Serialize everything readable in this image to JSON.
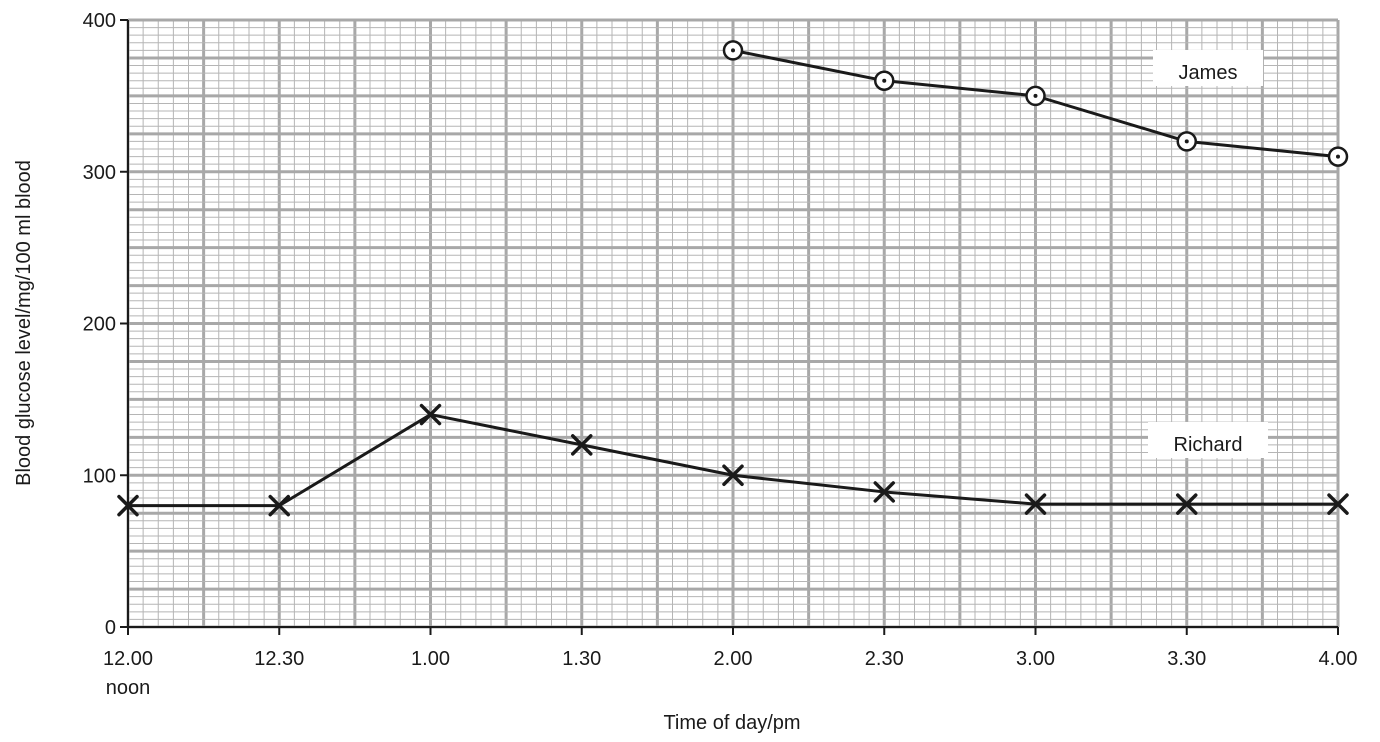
{
  "chart_data": {
    "type": "line",
    "xlabel": "Time of day/pm",
    "ylabel": "Blood glucose level/mg/100 ml blood",
    "ylim": [
      0,
      400
    ],
    "y_ticks": [
      "0",
      "100",
      "200",
      "300",
      "400"
    ],
    "x_ticks": [
      {
        "main": "12.00",
        "sub": "noon"
      },
      {
        "main": "12.30",
        "sub": ""
      },
      {
        "main": "1.00",
        "sub": ""
      },
      {
        "main": "1.30",
        "sub": ""
      },
      {
        "main": "2.00",
        "sub": ""
      },
      {
        "main": "2.30",
        "sub": ""
      },
      {
        "main": "3.00",
        "sub": ""
      },
      {
        "main": "3.30",
        "sub": ""
      },
      {
        "main": "4.00",
        "sub": ""
      }
    ],
    "grid": true,
    "series": [
      {
        "name": "James",
        "marker": "circle-dot",
        "x": [
          "2.00",
          "2.30",
          "3.00",
          "3.30",
          "4.00"
        ],
        "values": [
          380,
          360,
          350,
          320,
          310
        ]
      },
      {
        "name": "Richard",
        "marker": "cross",
        "x": [
          "12.00",
          "12.30",
          "1.00",
          "1.30",
          "2.00",
          "2.30",
          "3.00",
          "3.30",
          "4.00"
        ],
        "values": [
          80,
          80,
          140,
          120,
          100,
          89,
          81,
          81,
          81
        ]
      }
    ]
  },
  "colors": {
    "grid_minor": "#b5b5b5",
    "grid_major": "#a8a8a8",
    "axis": "#1a1a1a",
    "line": "#1a1a1a"
  }
}
